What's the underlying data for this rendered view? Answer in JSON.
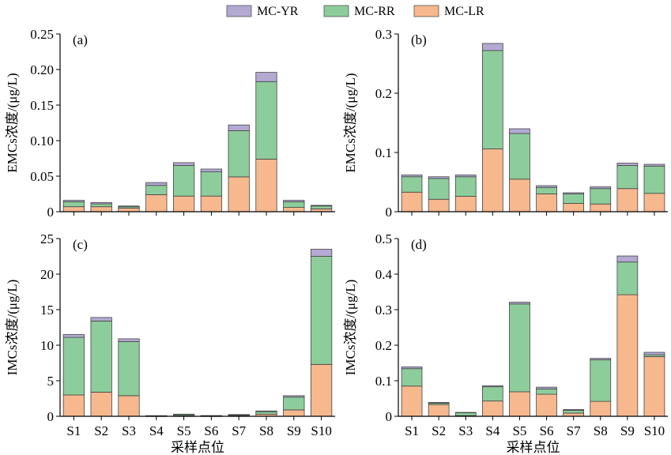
{
  "legend": [
    {
      "name": "MC-YR",
      "color": "#b3a9d3"
    },
    {
      "name": "MC-RR",
      "color": "#8dcd9b"
    },
    {
      "name": "MC-LR",
      "color": "#f7b88e"
    }
  ],
  "chart_data": [
    {
      "type": "bar",
      "stacked": true,
      "panel_label": "(a)",
      "ylabel": "EMCs浓度/(μg/L)",
      "xlabel": "",
      "ylim": [
        0,
        0.25
      ],
      "yticks": [
        "0",
        "0.05",
        "0.10",
        "0.15",
        "0.20",
        "0.25"
      ],
      "categories": [
        "S1",
        "S2",
        "S3",
        "S4",
        "S5",
        "S6",
        "S7",
        "S8",
        "S9",
        "S10"
      ],
      "series": [
        {
          "name": "MC-LR",
          "values": [
            0.007,
            0.007,
            0.005,
            0.024,
            0.022,
            0.022,
            0.049,
            0.074,
            0.006,
            0.004
          ]
        },
        {
          "name": "MC-RR",
          "values": [
            0.007,
            0.004,
            0.002,
            0.013,
            0.043,
            0.034,
            0.065,
            0.109,
            0.008,
            0.004
          ]
        },
        {
          "name": "MC-YR",
          "values": [
            0.002,
            0.002,
            0.001,
            0.004,
            0.004,
            0.004,
            0.008,
            0.013,
            0.002,
            0.001
          ]
        }
      ]
    },
    {
      "type": "bar",
      "stacked": true,
      "panel_label": "(b)",
      "ylabel": "EMCs浓度/(μg/L)",
      "xlabel": "",
      "ylim": [
        0,
        0.3
      ],
      "yticks": [
        "0",
        "0.1",
        "0.2",
        "0.3"
      ],
      "categories": [
        "S1",
        "S2",
        "S3",
        "S4",
        "S5",
        "S6",
        "S7",
        "S8",
        "S9",
        "S10"
      ],
      "series": [
        {
          "name": "MC-LR",
          "values": [
            0.033,
            0.021,
            0.026,
            0.106,
            0.055,
            0.03,
            0.014,
            0.013,
            0.039,
            0.031
          ]
        },
        {
          "name": "MC-RR",
          "values": [
            0.026,
            0.035,
            0.033,
            0.166,
            0.077,
            0.011,
            0.016,
            0.026,
            0.039,
            0.046
          ]
        },
        {
          "name": "MC-YR",
          "values": [
            0.003,
            0.003,
            0.003,
            0.012,
            0.008,
            0.003,
            0.002,
            0.003,
            0.004,
            0.003
          ]
        }
      ]
    },
    {
      "type": "bar",
      "stacked": true,
      "panel_label": "(c)",
      "ylabel": "IMCs浓度/(μg/L)",
      "xlabel": "采样点位",
      "ylim": [
        0,
        25
      ],
      "yticks": [
        "0",
        "5",
        "10",
        "15",
        "20",
        "25"
      ],
      "categories": [
        "S1",
        "S2",
        "S3",
        "S4",
        "S5",
        "S6",
        "S7",
        "S8",
        "S9",
        "S10"
      ],
      "series": [
        {
          "name": "MC-LR",
          "values": [
            3.0,
            3.4,
            2.9,
            0.03,
            0.1,
            0.03,
            0.1,
            0.3,
            0.9,
            7.3
          ]
        },
        {
          "name": "MC-RR",
          "values": [
            8.1,
            10.0,
            7.6,
            0.04,
            0.15,
            0.05,
            0.1,
            0.35,
            1.8,
            15.2
          ]
        },
        {
          "name": "MC-YR",
          "values": [
            0.4,
            0.5,
            0.4,
            0.02,
            0.05,
            0.02,
            0.05,
            0.1,
            0.2,
            1.0
          ]
        }
      ]
    },
    {
      "type": "bar",
      "stacked": true,
      "panel_label": "(d)",
      "ylabel": "IMCs浓度/(μg/L)",
      "xlabel": "采样点位",
      "ylim": [
        0,
        0.5
      ],
      "yticks": [
        "0",
        "0.1",
        "0.2",
        "0.3",
        "0.4",
        "0.5"
      ],
      "categories": [
        "S1",
        "S2",
        "S3",
        "S4",
        "S5",
        "S6",
        "S7",
        "S8",
        "S9",
        "S10"
      ],
      "series": [
        {
          "name": "MC-LR",
          "values": [
            0.085,
            0.033,
            0.002,
            0.043,
            0.069,
            0.062,
            0.009,
            0.042,
            0.342,
            0.168
          ]
        },
        {
          "name": "MC-RR",
          "values": [
            0.049,
            0.004,
            0.008,
            0.04,
            0.247,
            0.015,
            0.008,
            0.117,
            0.092,
            0.005
          ]
        },
        {
          "name": "MC-YR",
          "values": [
            0.005,
            0.002,
            0.001,
            0.003,
            0.005,
            0.005,
            0.002,
            0.004,
            0.017,
            0.007
          ]
        }
      ]
    }
  ]
}
